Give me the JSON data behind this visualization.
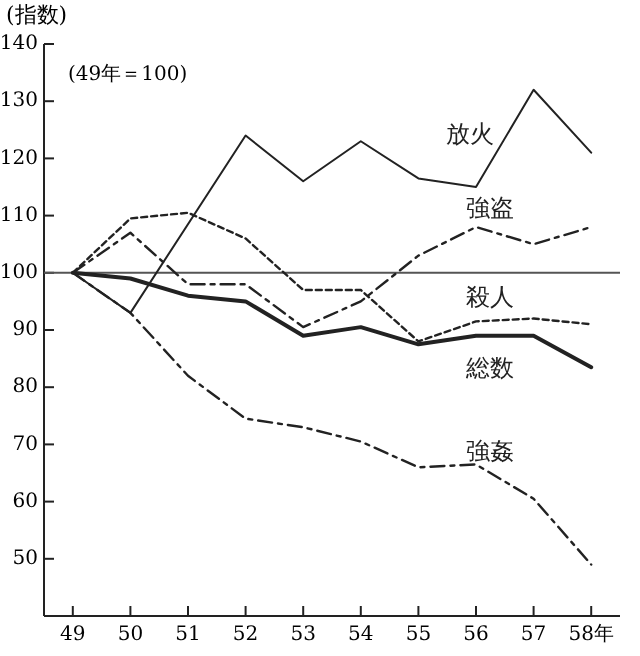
{
  "chart_data": {
    "type": "line",
    "ylabel": "(指数)",
    "annotations": [
      "(49年＝100)"
    ],
    "x": [
      49,
      50,
      51,
      52,
      53,
      54,
      55,
      56,
      57,
      58
    ],
    "xlim": [
      48.5,
      58.5
    ],
    "xticks": [
      49,
      50,
      51,
      52,
      53,
      54,
      55,
      56,
      57,
      {
        "value": 58,
        "label": "58年"
      }
    ],
    "ylim": [
      40,
      140
    ],
    "yticks": [
      50,
      60,
      70,
      80,
      90,
      100,
      110,
      120,
      130,
      140
    ],
    "grid": false,
    "marker": "none",
    "ref_lines": [
      {
        "axis": "y",
        "value": 100,
        "color": "#555555"
      }
    ],
    "series": [
      {
        "name": "放火",
        "color": "#222222",
        "line_style": "solid",
        "x": [
          49,
          50,
          52,
          53,
          54,
          55,
          56,
          57,
          58
        ],
        "values": [
          100,
          93,
          124,
          116,
          123,
          116.5,
          115,
          132,
          121
        ]
      },
      {
        "name": "強盗",
        "color": "#222222",
        "line_style": "dashed",
        "values": [
          100,
          107,
          98,
          98,
          90.5,
          95,
          103,
          108,
          105,
          108
        ]
      },
      {
        "name": "殺人",
        "color": "#222222",
        "line_style": "dotted",
        "values": [
          100,
          109.5,
          110.5,
          106,
          97,
          97,
          88,
          91.5,
          92,
          91
        ]
      },
      {
        "name": "総数",
        "color": "#222222",
        "line_style": "solid",
        "values": [
          100,
          99,
          96,
          95,
          89,
          90.5,
          87.5,
          89,
          89,
          83.5
        ]
      },
      {
        "name": "強姦",
        "color": "#222222",
        "line_style": "dashed",
        "values": [
          100,
          93,
          82,
          74.5,
          73,
          70.5,
          66,
          66.5,
          60.5,
          49
        ]
      }
    ]
  }
}
